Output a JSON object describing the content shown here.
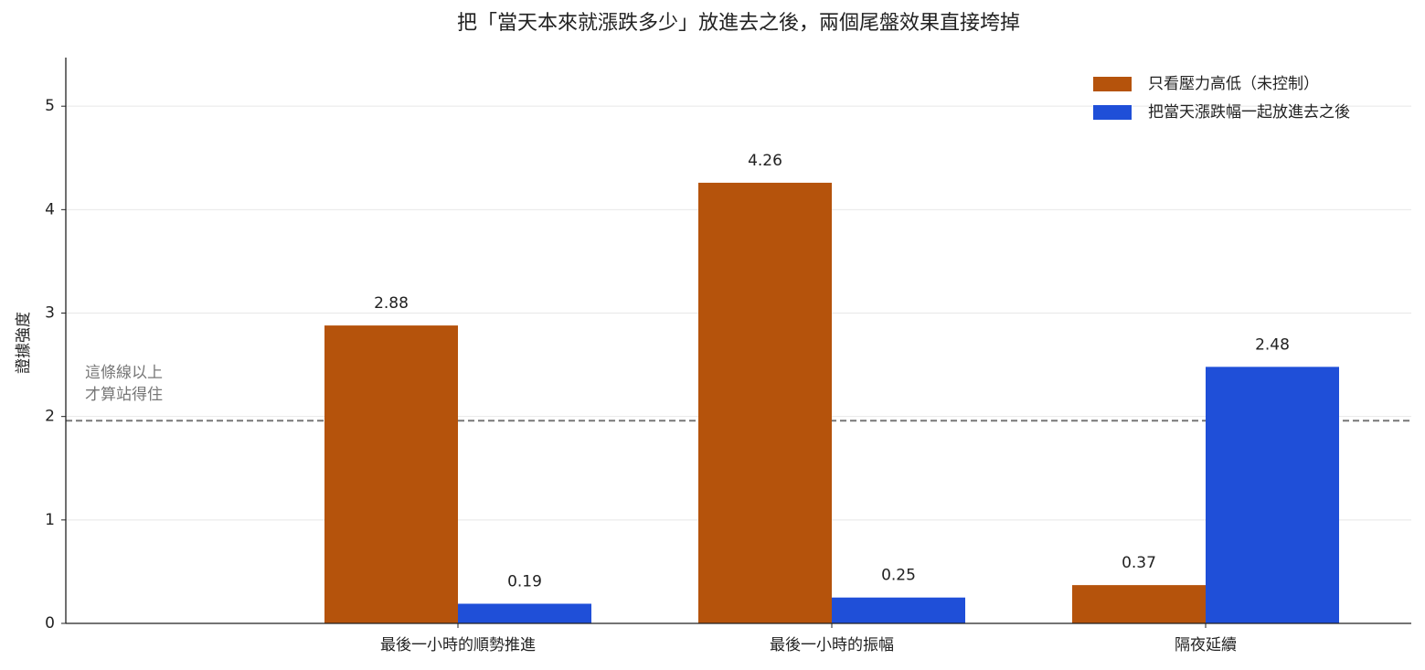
{
  "chart_data": {
    "type": "bar",
    "title": "把「當天本來就漲跌多少」放進去之後，兩個尾盤效果直接垮掉",
    "y_label": "證據強度",
    "categories": [
      "最後一小時的順勢推進",
      "最後一小時的振幅",
      "隔夜延續"
    ],
    "series": [
      {
        "name": "只看壓力高低（未控制）",
        "color": "#b5530c",
        "values": [
          2.88,
          4.26,
          0.37
        ]
      },
      {
        "name": "把當天漲跌幅一起放進去之後",
        "color": "#1f4fd8",
        "values": [
          0.19,
          0.25,
          2.48
        ]
      }
    ],
    "ylim": [
      0,
      5.47
    ],
    "yticks": [
      0,
      1,
      2,
      3,
      4,
      5
    ],
    "grid": true,
    "legend": "upper right",
    "reference_line": {
      "value": 1.96,
      "color": "#777777",
      "label": [
        "這條線以上",
        "才算站得住"
      ]
    }
  }
}
